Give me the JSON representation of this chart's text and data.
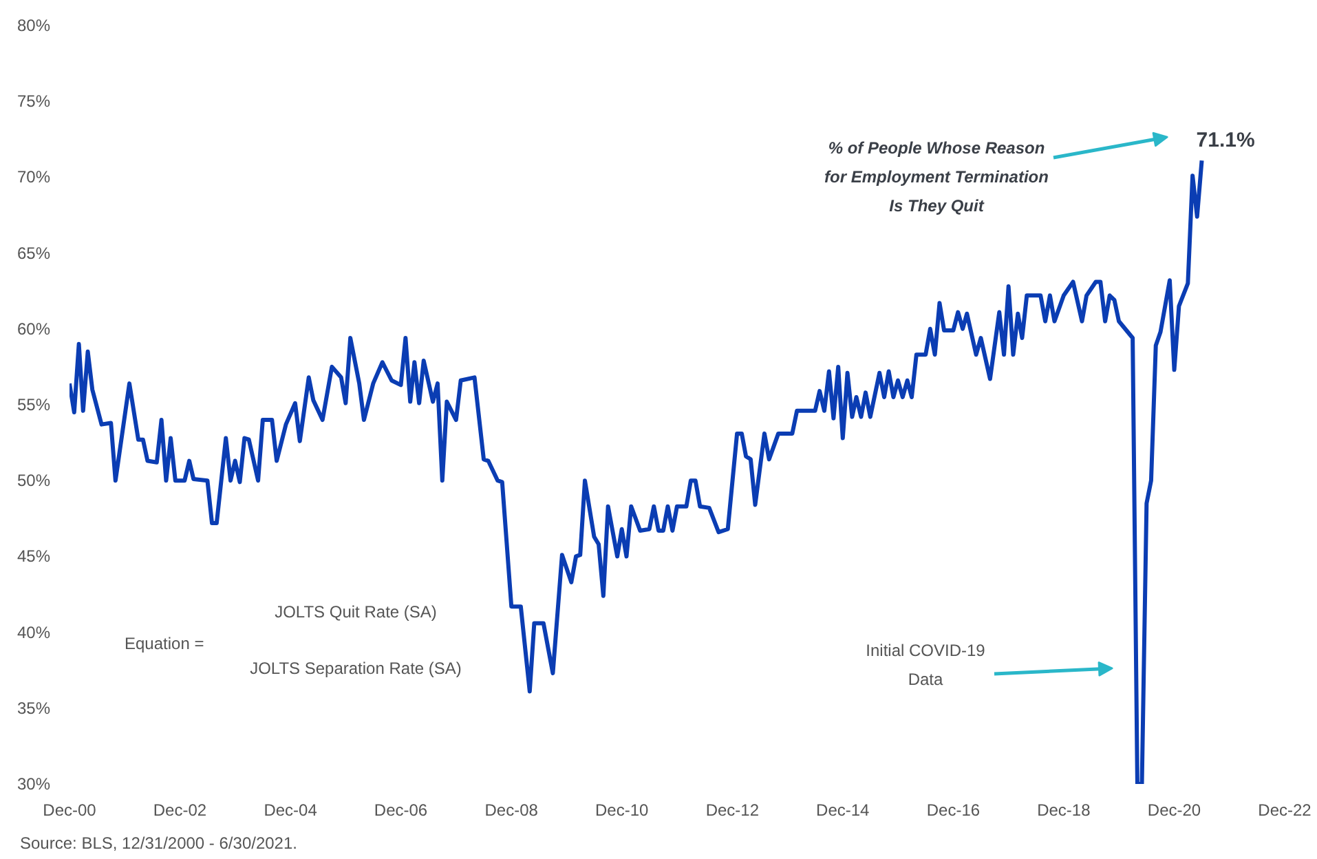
{
  "chart_data": {
    "type": "line",
    "x": [
      "2000-12",
      "2001-01",
      "2001-02",
      "2001-03",
      "2001-04",
      "2001-05",
      "2001-07",
      "2001-09",
      "2001-10",
      "2002-01",
      "2002-03",
      "2002-04",
      "2002-05",
      "2002-07",
      "2002-08",
      "2002-09",
      "2002-10",
      "2002-11",
      "2003-01",
      "2003-02",
      "2003-03",
      "2003-06",
      "2003-07",
      "2003-08",
      "2003-10",
      "2003-11",
      "2003-12",
      "2004-01",
      "2004-02",
      "2004-03",
      "2004-05",
      "2004-06",
      "2004-08",
      "2004-09",
      "2004-11",
      "2005-01",
      "2005-02",
      "2005-04",
      "2005-05",
      "2005-07",
      "2005-09",
      "2005-11",
      "2005-12",
      "2006-01",
      "2006-03",
      "2006-04",
      "2006-06",
      "2006-08",
      "2006-10",
      "2006-12",
      "2007-01",
      "2007-02",
      "2007-03",
      "2007-04",
      "2007-05",
      "2007-07",
      "2007-08",
      "2007-09",
      "2007-10",
      "2007-12",
      "2008-01",
      "2008-04",
      "2008-06",
      "2008-07",
      "2008-09",
      "2008-10",
      "2008-12",
      "2009-02",
      "2009-04",
      "2009-05",
      "2009-07",
      "2009-09",
      "2009-11",
      "2010-01",
      "2010-02",
      "2010-03",
      "2010-04",
      "2010-06",
      "2010-07",
      "2010-08",
      "2010-09",
      "2010-11",
      "2010-12",
      "2011-01",
      "2011-02",
      "2011-04",
      "2011-06",
      "2011-07",
      "2011-08",
      "2011-09",
      "2011-10",
      "2011-11",
      "2011-12",
      "2012-02",
      "2012-03",
      "2012-04",
      "2012-05",
      "2012-07",
      "2012-09",
      "2012-11",
      "2013-01",
      "2013-02",
      "2013-03",
      "2013-04",
      "2013-05",
      "2013-07",
      "2013-08",
      "2013-10",
      "2014-01",
      "2014-02",
      "2014-06",
      "2014-07",
      "2014-08",
      "2014-09",
      "2014-10",
      "2014-11",
      "2014-12",
      "2015-01",
      "2015-02",
      "2015-03",
      "2015-04",
      "2015-05",
      "2015-06",
      "2015-08",
      "2015-09",
      "2015-10",
      "2015-11",
      "2015-12",
      "2016-01",
      "2016-02",
      "2016-03",
      "2016-04",
      "2016-06",
      "2016-07",
      "2016-08",
      "2016-09",
      "2016-10",
      "2016-12",
      "2017-01",
      "2017-02",
      "2017-03",
      "2017-05",
      "2017-06",
      "2017-08",
      "2017-10",
      "2017-11",
      "2017-12",
      "2018-01",
      "2018-02",
      "2018-03",
      "2018-04",
      "2018-07",
      "2018-08",
      "2018-09",
      "2018-10",
      "2018-12",
      "2019-02",
      "2019-04",
      "2019-05",
      "2019-07",
      "2019-08",
      "2019-09",
      "2019-10",
      "2019-11",
      "2019-12",
      "2020-03",
      "2020-04",
      "2020-05",
      "2020-06",
      "2020-07",
      "2020-08",
      "2020-09",
      "2020-11",
      "2020-12",
      "2021-01",
      "2021-03",
      "2021-04",
      "2021-05",
      "2021-06"
    ],
    "series": [
      {
        "color": "#0b3db3",
        "values": [
          56.4,
          54.5,
          59.0,
          54.6,
          58.5,
          56.0,
          53.7,
          53.8,
          50.0,
          56.4,
          52.7,
          52.7,
          51.3,
          51.2,
          54.0,
          50.0,
          52.8,
          50.0,
          50.0,
          51.3,
          50.1,
          50.0,
          47.2,
          47.2,
          52.8,
          50.0,
          51.3,
          49.9,
          52.8,
          52.7,
          50.0,
          54.0,
          54.0,
          51.3,
          53.7,
          55.1,
          52.6,
          56.8,
          55.3,
          54.0,
          57.5,
          56.8,
          55.1,
          59.4,
          56.4,
          54.0,
          56.4,
          57.8,
          56.6,
          56.3,
          59.4,
          55.2,
          57.8,
          55.1,
          57.9,
          55.2,
          56.4,
          50.0,
          55.2,
          54.0,
          56.6,
          56.8,
          51.4,
          51.3,
          50.0,
          49.9,
          41.7,
          41.7,
          36.1,
          40.6,
          40.6,
          37.3,
          45.1,
          43.3,
          45.0,
          45.1,
          50.0,
          46.3,
          45.8,
          42.4,
          48.3,
          45.0,
          46.8,
          45.0,
          48.3,
          46.7,
          46.8,
          48.3,
          46.7,
          46.7,
          48.3,
          46.7,
          48.3,
          48.3,
          50.0,
          50.0,
          48.3,
          48.2,
          46.6,
          46.8,
          53.1,
          53.1,
          51.6,
          51.4,
          48.4,
          53.1,
          51.4,
          53.1,
          53.1,
          54.6,
          54.6,
          55.9,
          54.6,
          57.2,
          54.1,
          57.5,
          52.8,
          57.1,
          54.2,
          55.5,
          54.2,
          55.8,
          54.2,
          57.1,
          55.5,
          57.2,
          55.5,
          56.6,
          55.5,
          56.6,
          55.5,
          58.3,
          58.3,
          60.0,
          58.3,
          61.7,
          59.9,
          59.9,
          61.1,
          60.0,
          61.0,
          58.3,
          59.4,
          56.7,
          61.1,
          58.3,
          62.8,
          58.3,
          61.0,
          59.4,
          62.2,
          62.2,
          60.5,
          62.2,
          60.5,
          62.2,
          63.1,
          60.5,
          62.2,
          63.1,
          63.1,
          60.5,
          62.2,
          61.9,
          60.5,
          59.4,
          30.0,
          30.0,
          48.5,
          50.0,
          58.9,
          59.8,
          63.2,
          57.3,
          61.5,
          63.0,
          70.1,
          67.4,
          71.1
        ]
      }
    ],
    "xlim": [
      "2000-12",
      "2022-12"
    ],
    "xticks": [
      {
        "value": "2000-12",
        "label": "Dec-00"
      },
      {
        "value": "2002-12",
        "label": "Dec-02"
      },
      {
        "value": "2004-12",
        "label": "Dec-04"
      },
      {
        "value": "2006-12",
        "label": "Dec-06"
      },
      {
        "value": "2008-12",
        "label": "Dec-08"
      },
      {
        "value": "2010-12",
        "label": "Dec-10"
      },
      {
        "value": "2012-12",
        "label": "Dec-12"
      },
      {
        "value": "2014-12",
        "label": "Dec-14"
      },
      {
        "value": "2016-12",
        "label": "Dec-16"
      },
      {
        "value": "2018-12",
        "label": "Dec-18"
      },
      {
        "value": "2020-12",
        "label": "Dec-20"
      },
      {
        "value": "2022-12",
        "label": "Dec-22"
      }
    ],
    "ylim": [
      30,
      80
    ],
    "yticks": [
      {
        "value": 30,
        "label": "30%"
      },
      {
        "value": 35,
        "label": "35%"
      },
      {
        "value": 40,
        "label": "40%"
      },
      {
        "value": 45,
        "label": "45%"
      },
      {
        "value": 50,
        "label": "50%"
      },
      {
        "value": 55,
        "label": "55%"
      },
      {
        "value": 60,
        "label": "60%"
      },
      {
        "value": 65,
        "label": "65%"
      },
      {
        "value": 70,
        "label": "70%"
      },
      {
        "value": 75,
        "label": "75%"
      },
      {
        "value": 80,
        "label": "80%"
      }
    ],
    "annotations": [
      {
        "text": "71.1%",
        "x": "2021-06",
        "y": 71.1
      },
      "% of People Whose Reason\nfor Employment Termination\nIs They Quit",
      "Initial COVID-19\nData",
      "Equation =",
      "JOLTS Quit Rate (SA)",
      "JOLTS Separation Rate (SA)",
      "Source:  BLS, 12/31/2000 - 6/30/2021."
    ]
  }
}
